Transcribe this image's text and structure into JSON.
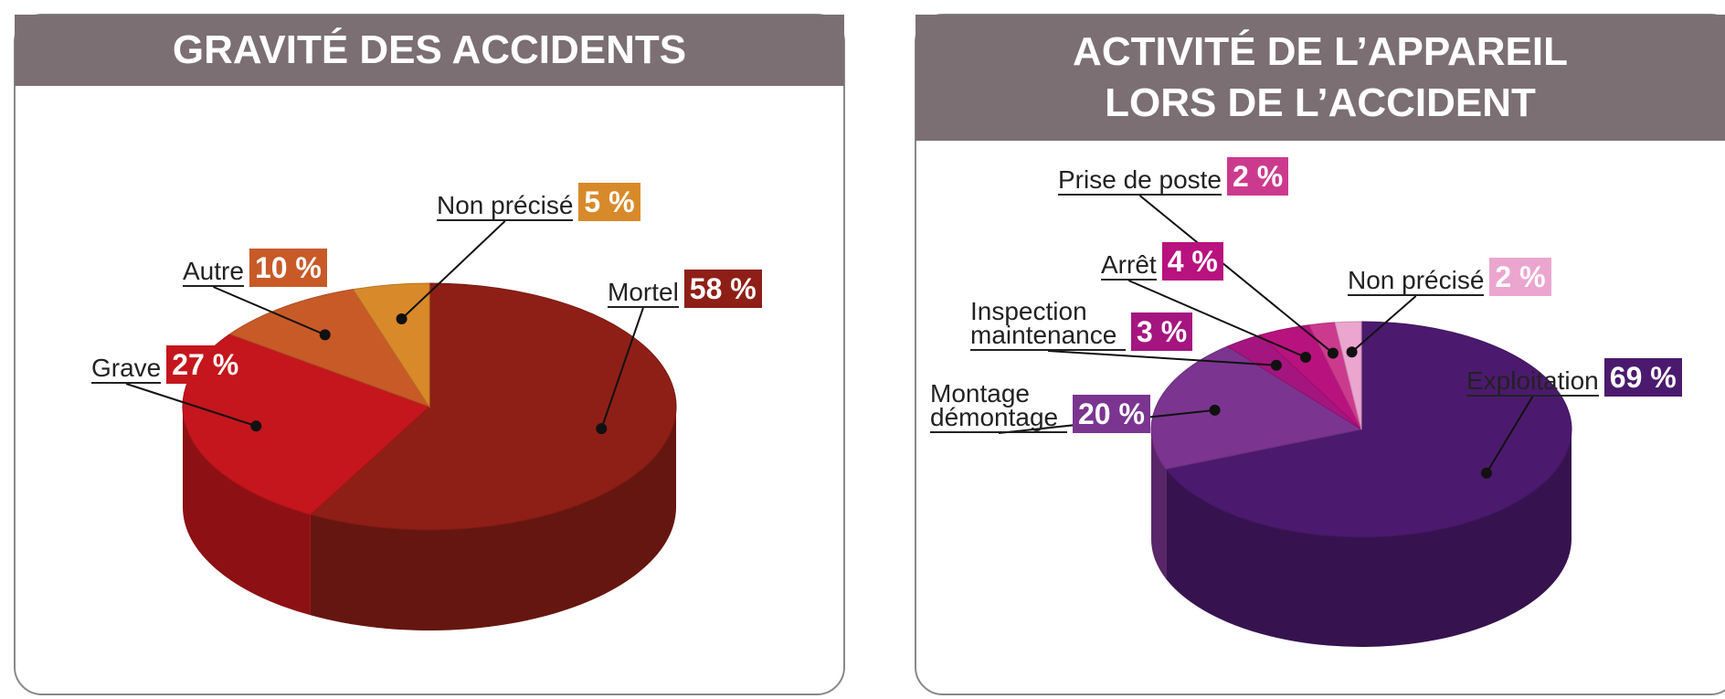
{
  "chart_data": [
    {
      "type": "pie",
      "title": "GRAVITÉ DES ACCIDENTS",
      "categories": [
        "Mortel",
        "Grave",
        "Autre",
        "Non précisé"
      ],
      "values": [
        58,
        27,
        10,
        5
      ],
      "value_labels": [
        "58 %",
        "27 %",
        "10 %",
        "5 %"
      ],
      "colors": [
        "#8e1f16",
        "#c4161c",
        "#c85a28",
        "#d88a2a"
      ]
    },
    {
      "type": "pie",
      "title": "ACTIVITÉ DE L’APPAREIL LORS DE L’ACCIDENT",
      "categories": [
        "Exploitation",
        "Montage démontage",
        "Inspection maintenance",
        "Arrêt",
        "Prise de poste",
        "Non précisé"
      ],
      "values": [
        69,
        20,
        3,
        4,
        2,
        2
      ],
      "value_labels": [
        "69 %",
        "20 %",
        "3 %",
        "4 %",
        "2 %",
        "2 %"
      ],
      "colors": [
        "#4b1a6e",
        "#7b3590",
        "#a5157f",
        "#b8127e",
        "#cc3a8e",
        "#eba6cf"
      ]
    }
  ]
}
